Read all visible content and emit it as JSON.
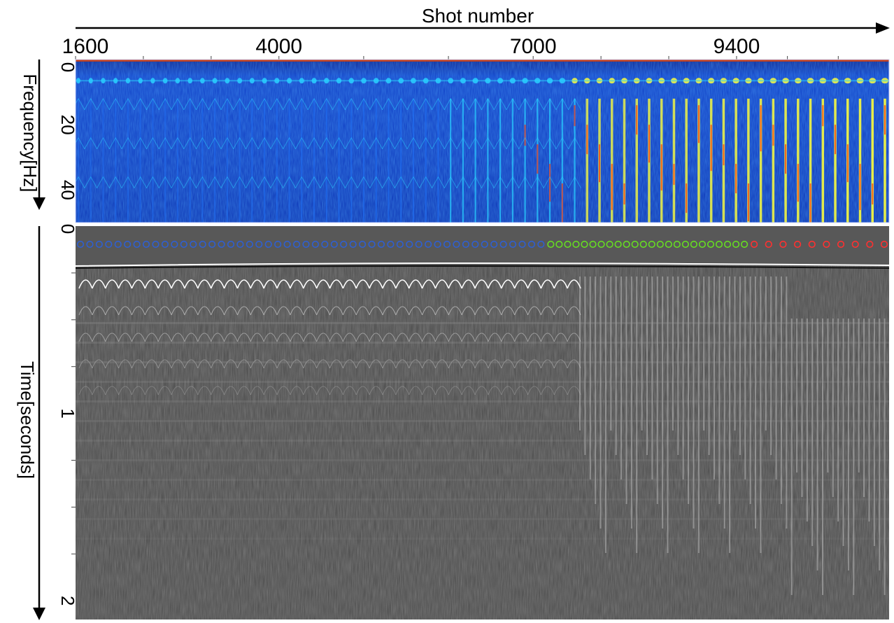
{
  "chart_data": [
    {
      "type": "heatmap",
      "panel": "frequency-spectrum",
      "x_axis": {
        "label": "Shot number",
        "ticks": [
          1600,
          4000,
          7000,
          9400
        ],
        "range": [
          1600,
          11200
        ]
      },
      "y_axis": {
        "label": "Frequency[Hz]",
        "ticks": [
          0,
          20,
          40
        ],
        "range": [
          0,
          50
        ],
        "direction": "downward"
      },
      "colormap": [
        "#00007f",
        "#0a2fd6",
        "#1f6cf0",
        "#29d0ff",
        "#ffff3a",
        "#ff2a0a",
        "#8a0000"
      ]
    },
    {
      "type": "heatmap",
      "panel": "seismic-section",
      "x_axis": {
        "label": "Shot number",
        "ticks": [
          1600,
          4000,
          7000,
          9400
        ],
        "range": [
          1600,
          11200
        ]
      },
      "y_axis": {
        "label": "Time[seconds]",
        "ticks": [
          0,
          1,
          2
        ],
        "range": [
          0,
          2.1
        ],
        "direction": "downward"
      },
      "colormap": [
        "#000000",
        "#555555",
        "#ffffff"
      ],
      "marker_groups": [
        {
          "color": "#2f5fd0",
          "count": 50,
          "shot_range": [
            1600,
            7150
          ]
        },
        {
          "color": "#66dd22",
          "count": 24,
          "shot_range": [
            7150,
            9550
          ]
        },
        {
          "color": "#ff3030",
          "count": 10,
          "shot_range": [
            9550,
            11200
          ]
        }
      ]
    }
  ]
}
